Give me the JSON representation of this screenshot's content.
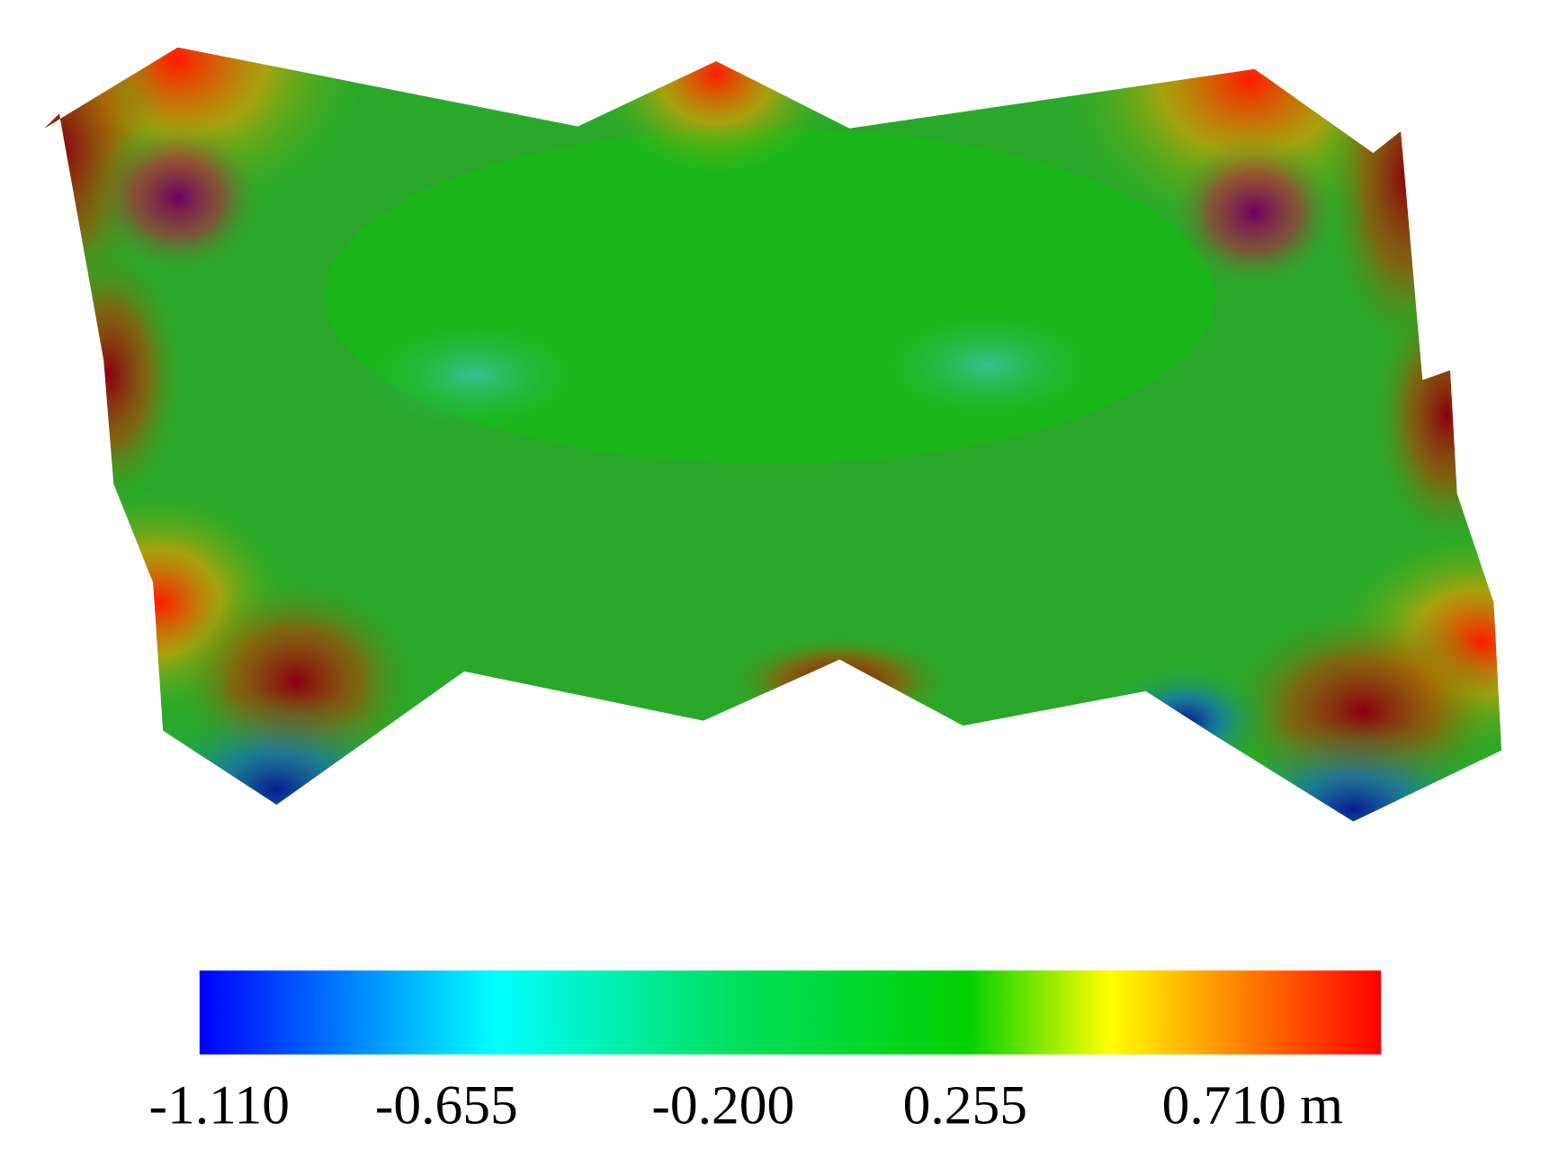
{
  "colorbar": {
    "labels": [
      "-1.110",
      "-0.655",
      "-0.200",
      "0.255",
      "0.710 m"
    ]
  }
}
